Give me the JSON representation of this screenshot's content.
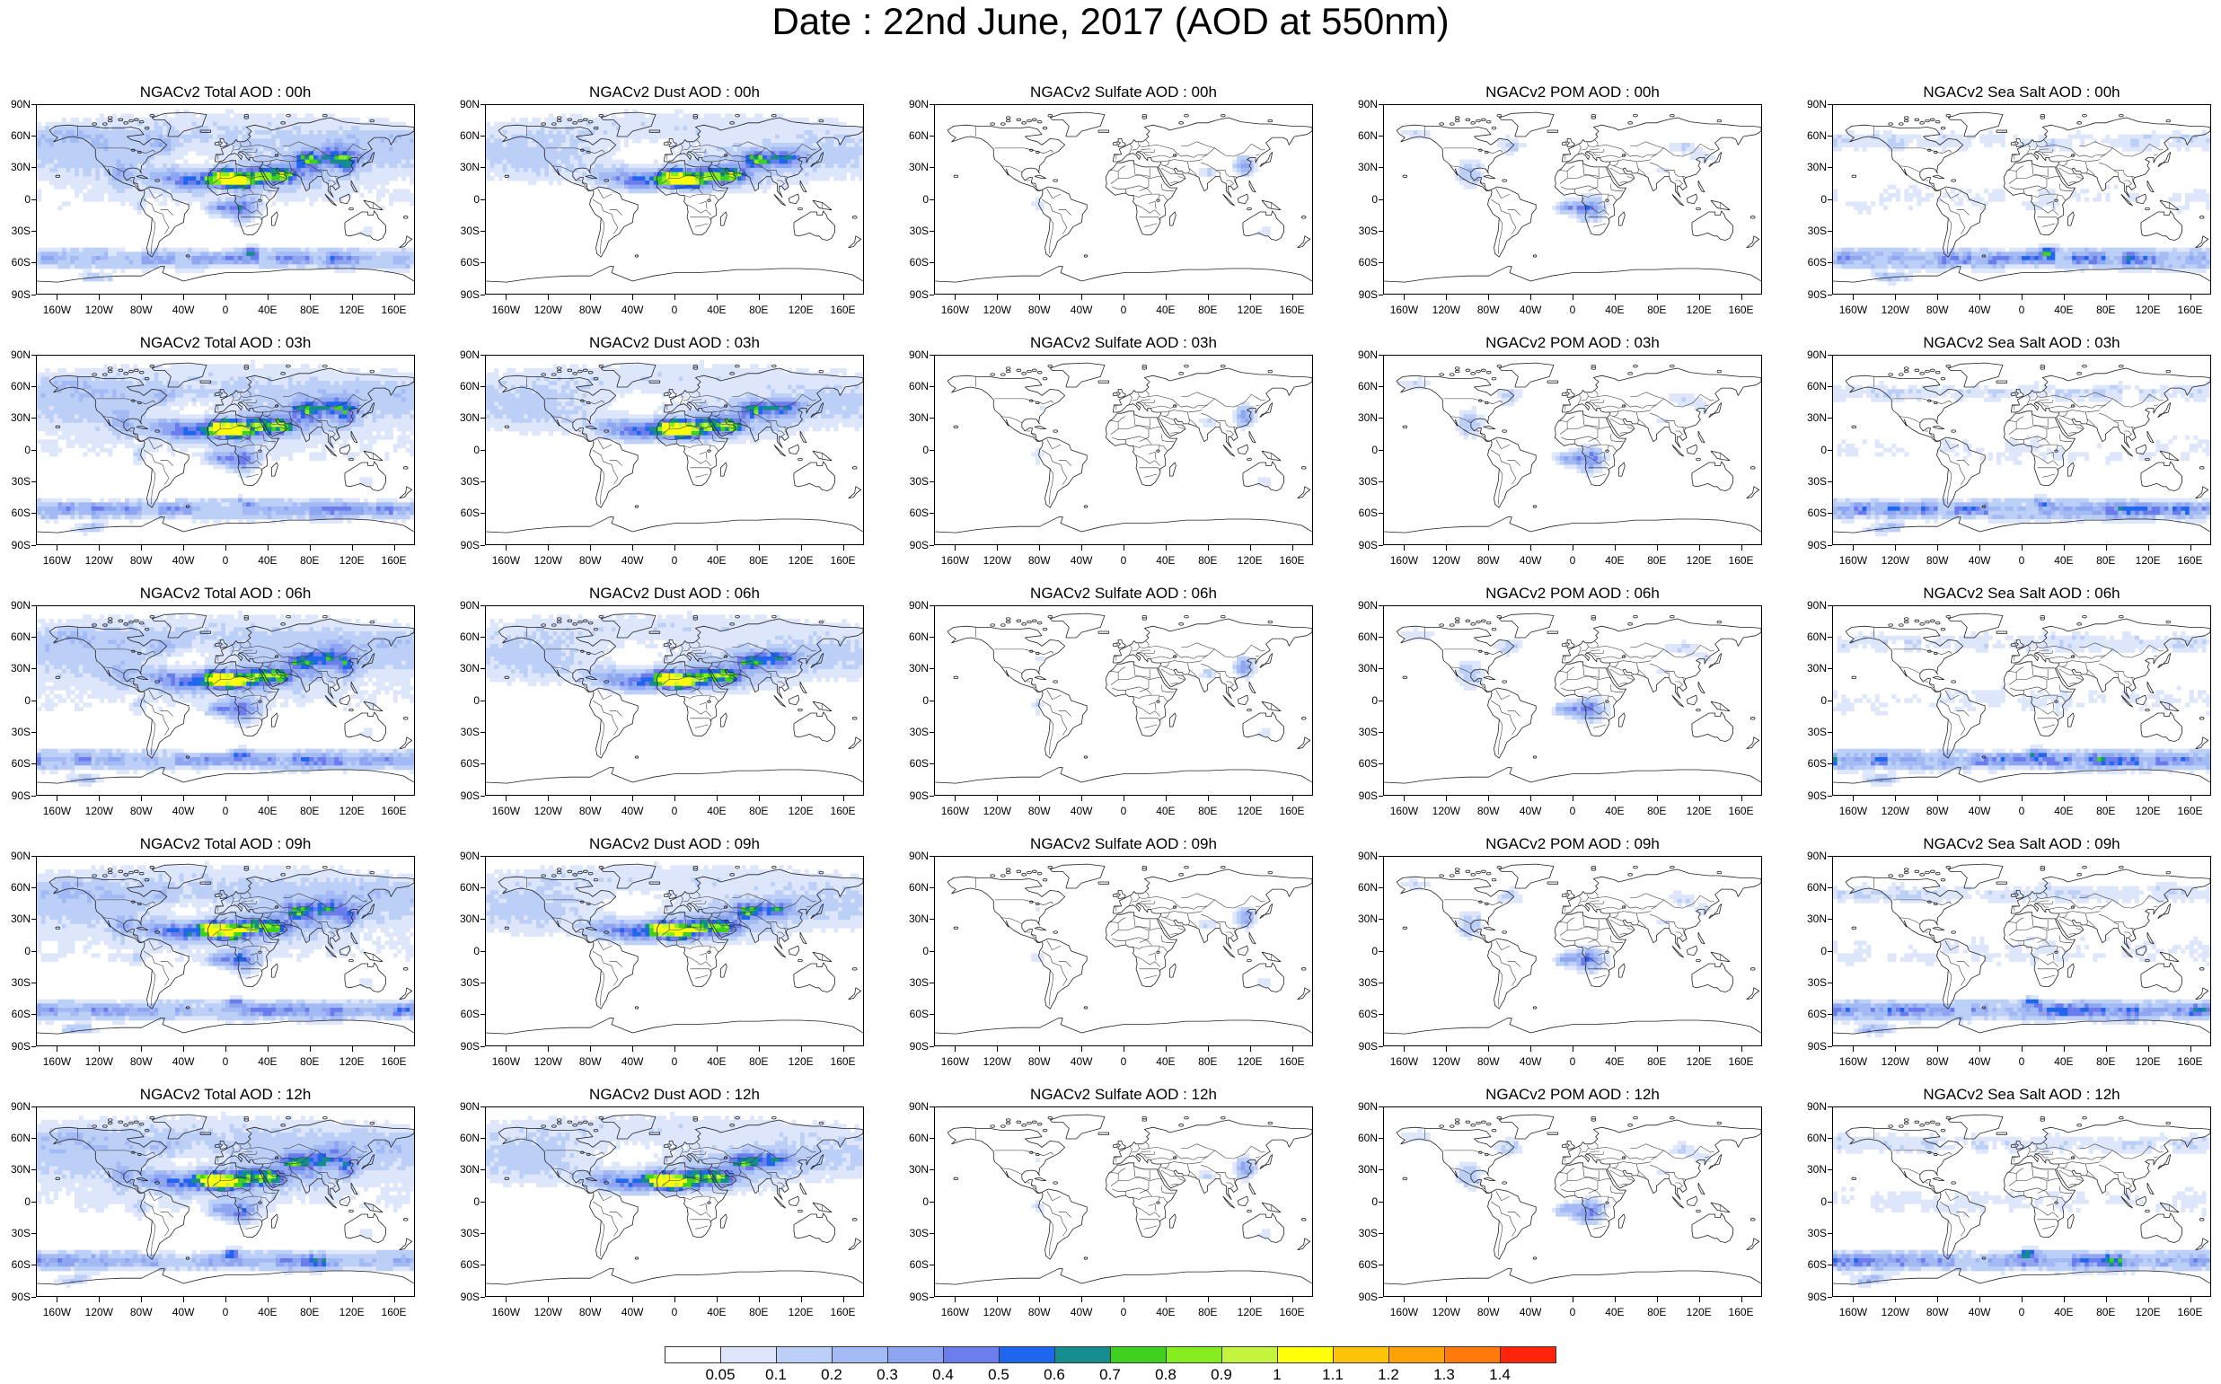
{
  "title": "Date : 22nd June, 2017 (AOD at 550nm)",
  "species": [
    "total",
    "dust",
    "sulfate",
    "pom",
    "seasalt"
  ],
  "panel_titles": [
    [
      "NGACv2 Total AOD : 00h",
      "NGACv2 Dust AOD : 00h",
      "NGACv2 Sulfate AOD : 00h",
      "NGACv2 POM AOD : 00h",
      "NGACv2 Sea Salt AOD : 00h"
    ],
    [
      "NGACv2 Total AOD : 03h",
      "NGACv2 Dust AOD : 03h",
      "NGACv2 Sulfate AOD : 03h",
      "NGACv2 POM AOD : 03h",
      "NGACv2 Sea Salt AOD : 03h"
    ],
    [
      "NGACv2 Total AOD : 06h",
      "NGACv2 Dust AOD : 06h",
      "NGACv2 Sulfate AOD : 06h",
      "NGACv2 POM AOD : 06h",
      "NGACv2 Sea Salt AOD : 06h"
    ],
    [
      "NGACv2 Total AOD : 09h",
      "NGACv2 Dust AOD : 09h",
      "NGACv2 Sulfate AOD : 09h",
      "NGACv2 POM AOD : 09h",
      "NGACv2 Sea Salt  AOD : 09h"
    ],
    [
      "NGACv2 Total AOD  : 12h",
      "NGACv2 Dust AOD : 12h",
      "NGACv2 Sulfate AOD : 12h",
      "NGACv2 POM  AOD : 12h",
      "NGACv2 Sea Salt  AOD : 12h"
    ]
  ],
  "lat_labels": [
    "90N",
    "60N",
    "30N",
    "0",
    "30S",
    "60S",
    "90S"
  ],
  "lon_labels": [
    "160W",
    "120W",
    "80W",
    "40W",
    "0",
    "40E",
    "80E",
    "120E",
    "160E"
  ],
  "lon_values": [
    -160,
    -120,
    -80,
    -40,
    0,
    40,
    80,
    120,
    160
  ],
  "colorbar": {
    "labels": [
      "0.05",
      "0.1",
      "0.2",
      "0.3",
      "0.4",
      "0.5",
      "0.6",
      "0.7",
      "0.8",
      "0.9",
      "1",
      "1.1",
      "1.2",
      "1.3",
      "1.4"
    ],
    "colors": [
      "#ffffff",
      "#dde6fb",
      "#bccff7",
      "#a3baf4",
      "#8ea5f1",
      "#6b7ced",
      "#1f66ee",
      "#158c8e",
      "#3fd120",
      "#86ee1e",
      "#c5f43e",
      "#ffff0a",
      "#ffc40a",
      "#ffa20a",
      "#ff7a0a",
      "#ff240a"
    ]
  }
}
